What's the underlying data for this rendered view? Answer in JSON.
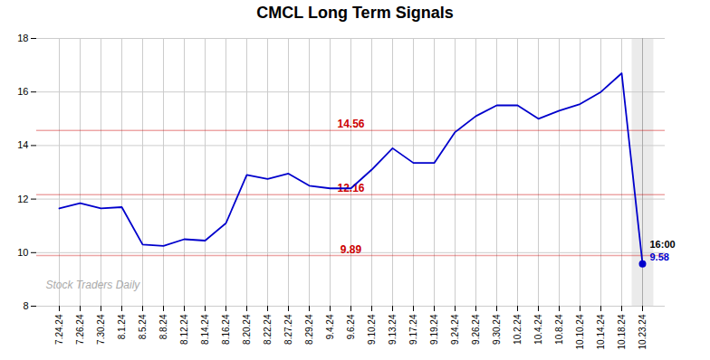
{
  "chart_data": {
    "type": "line",
    "title": "CMCL Long Term Signals",
    "categories": [
      "7.24.24",
      "7.26.24",
      "7.30.24",
      "8.1.24",
      "8.5.24",
      "8.8.24",
      "8.12.24",
      "8.14.24",
      "8.16.24",
      "8.20.24",
      "8.22.24",
      "8.27.24",
      "8.29.24",
      "9.4.24",
      "9.6.24",
      "9.10.24",
      "9.13.24",
      "9.17.24",
      "9.19.24",
      "9.24.24",
      "9.26.24",
      "9.30.24",
      "10.2.24",
      "10.4.24",
      "10.8.24",
      "10.10.24",
      "10.14.24",
      "10.18.24",
      "10.23.24"
    ],
    "values": [
      11.65,
      11.85,
      11.65,
      11.7,
      10.3,
      10.25,
      10.5,
      10.45,
      11.1,
      12.9,
      12.75,
      12.95,
      12.5,
      12.4,
      12.4,
      13.1,
      13.9,
      13.35,
      13.35,
      14.5,
      15.1,
      15.5,
      15.5,
      15.0,
      15.3,
      15.55,
      16.0,
      16.7,
      9.58
    ],
    "color": "#0000cc",
    "ylim": [
      8,
      18
    ],
    "yticks": [
      8,
      10,
      12,
      14,
      16,
      18
    ],
    "grid": true,
    "reference_lines": [
      {
        "value": 14.56,
        "label": "14.56",
        "color": "#cc0000"
      },
      {
        "value": 12.16,
        "label": "12.16",
        "color": "#cc0000"
      },
      {
        "value": 9.89,
        "label": "9.89",
        "color": "#cc0000"
      }
    ],
    "annotations": [
      {
        "text": "16:00",
        "color": "#000000"
      },
      {
        "text": "9.58",
        "color": "#0000cc"
      },
      {
        "text": "Stock Traders Daily",
        "color": "#aaaaaa"
      }
    ]
  }
}
